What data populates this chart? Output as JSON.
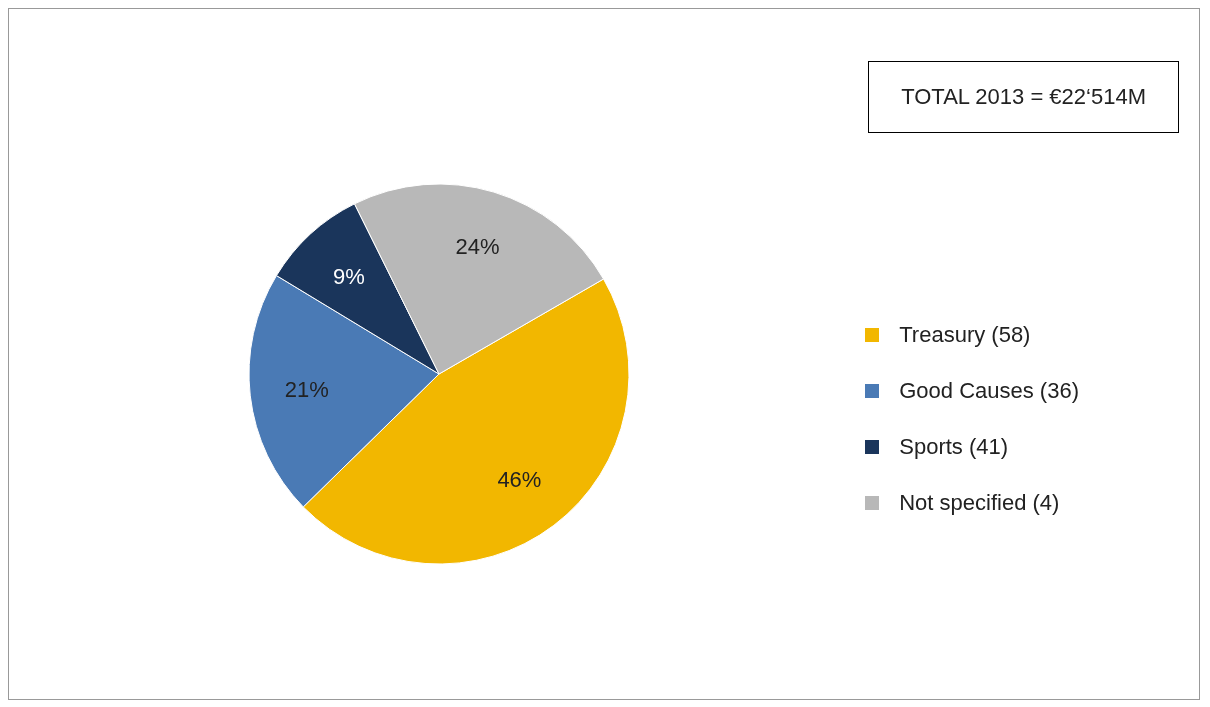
{
  "chart_data": {
    "type": "pie",
    "categories": [
      "Treasury (58)",
      "Good Causes (36)",
      "Sports (41)",
      "Not specified (4)"
    ],
    "values": [
      46,
      21,
      9,
      24
    ],
    "colors": [
      "#f2b700",
      "#4a7ab5",
      "#1a355b",
      "#b8b8b8"
    ],
    "value_labels": [
      "46%",
      "21%",
      "9%",
      "24%"
    ],
    "legend": "right",
    "annotations": [
      "TOTAL 2013 = €22‘514M"
    ]
  }
}
